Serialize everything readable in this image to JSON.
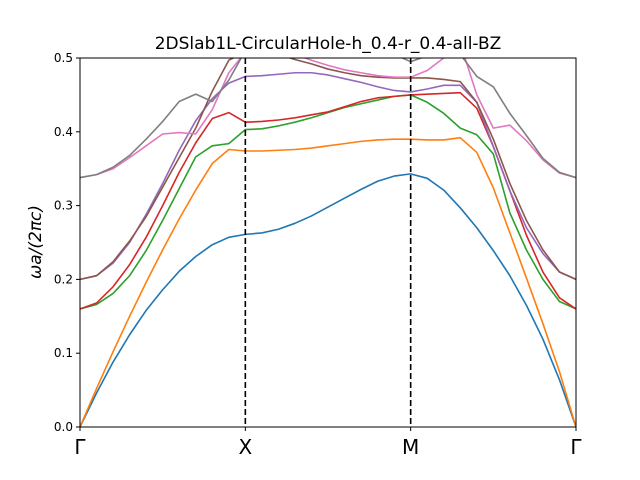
{
  "chart_data": {
    "type": "line",
    "title": "2DSlab1L-CircularHole-h_0.4-r_0.4-all-BZ",
    "ylabel": "ωa/(2πc)",
    "xlabel": "",
    "ylim": [
      0,
      0.5
    ],
    "xlim": [
      0,
      30
    ],
    "grid": false,
    "legend": "none",
    "x_ticks": [
      {
        "x": 0,
        "label": "Γ"
      },
      {
        "x": 10,
        "label": "X"
      },
      {
        "x": 20,
        "label": "M"
      },
      {
        "x": 30,
        "label": "Γ"
      }
    ],
    "y_ticks": [
      "0.0",
      "0.1",
      "0.2",
      "0.3",
      "0.4",
      "0.5"
    ],
    "y_tick_values": [
      0,
      0.1,
      0.2,
      0.3,
      0.4,
      0.5
    ],
    "vlines": [
      10,
      20
    ],
    "x": [
      0,
      1,
      2,
      3,
      4,
      5,
      6,
      7,
      8,
      9,
      10,
      11,
      12,
      13,
      14,
      15,
      16,
      17,
      18,
      19,
      20,
      21,
      22,
      23,
      24,
      25,
      26,
      27,
      28,
      29,
      30
    ],
    "series": [
      {
        "color": "#1f77b4",
        "values": [
          0.0,
          0.046,
          0.088,
          0.125,
          0.158,
          0.186,
          0.211,
          0.231,
          0.247,
          0.257,
          0.261,
          0.263,
          0.268,
          0.276,
          0.286,
          0.298,
          0.31,
          0.322,
          0.333,
          0.34,
          0.343,
          0.337,
          0.321,
          0.297,
          0.27,
          0.239,
          0.205,
          0.165,
          0.119,
          0.064,
          0.0
        ]
      },
      {
        "color": "#ff7f0e",
        "values": [
          0.0,
          0.052,
          0.102,
          0.15,
          0.196,
          0.24,
          0.282,
          0.321,
          0.357,
          0.376,
          0.374,
          0.374,
          0.375,
          0.376,
          0.378,
          0.381,
          0.384,
          0.387,
          0.389,
          0.39,
          0.39,
          0.389,
          0.389,
          0.392,
          0.372,
          0.324,
          0.263,
          0.202,
          0.14,
          0.075,
          0.0
        ]
      },
      {
        "color": "#2ca02c",
        "values": [
          0.16,
          0.166,
          0.181,
          0.205,
          0.239,
          0.28,
          0.323,
          0.366,
          0.381,
          0.384,
          0.403,
          0.404,
          0.408,
          0.413,
          0.419,
          0.426,
          0.433,
          0.438,
          0.443,
          0.448,
          0.45,
          0.44,
          0.425,
          0.405,
          0.396,
          0.37,
          0.29,
          0.24,
          0.2,
          0.17,
          0.16
        ]
      },
      {
        "color": "#d62728",
        "values": [
          0.16,
          0.168,
          0.19,
          0.22,
          0.257,
          0.3,
          0.345,
          0.385,
          0.418,
          0.426,
          0.413,
          0.414,
          0.416,
          0.419,
          0.423,
          0.427,
          0.434,
          0.441,
          0.446,
          0.448,
          0.45,
          0.451,
          0.452,
          0.453,
          0.432,
          0.38,
          0.32,
          0.26,
          0.21,
          0.175,
          0.16
        ]
      },
      {
        "color": "#9467bd",
        "values": [
          0.2,
          0.205,
          0.222,
          0.25,
          0.288,
          0.33,
          0.375,
          0.415,
          0.445,
          0.466,
          0.475,
          0.476,
          0.478,
          0.48,
          0.48,
          0.477,
          0.472,
          0.467,
          0.461,
          0.456,
          0.454,
          0.458,
          0.463,
          0.463,
          0.44,
          0.38,
          0.32,
          0.27,
          0.235,
          0.21,
          0.2
        ]
      },
      {
        "color": "#8c564b",
        "values": [
          0.2,
          0.205,
          0.224,
          0.252,
          0.285,
          0.325,
          0.365,
          0.405,
          0.455,
          0.497,
          0.508,
          0.51,
          0.505,
          0.498,
          0.492,
          0.485,
          0.48,
          0.476,
          0.474,
          0.473,
          0.473,
          0.473,
          0.471,
          0.468,
          0.44,
          0.39,
          0.33,
          0.28,
          0.24,
          0.21,
          0.2
        ]
      },
      {
        "color": "#e377c2",
        "values": [
          0.338,
          0.342,
          0.35,
          0.365,
          0.381,
          0.397,
          0.399,
          0.397,
          0.43,
          0.48,
          0.508,
          0.512,
          0.51,
          0.505,
          0.497,
          0.49,
          0.484,
          0.48,
          0.476,
          0.474,
          0.474,
          0.483,
          0.5,
          0.52,
          0.45,
          0.405,
          0.409,
          0.388,
          0.362,
          0.344,
          0.338
        ]
      },
      {
        "color": "#7f7f7f",
        "values": [
          0.338,
          0.342,
          0.352,
          0.368,
          0.39,
          0.414,
          0.441,
          0.451,
          0.441,
          0.47,
          0.51,
          0.52,
          0.525,
          0.525,
          0.525,
          0.525,
          0.525,
          0.52,
          0.515,
          0.505,
          0.495,
          0.503,
          0.51,
          0.505,
          0.475,
          0.461,
          0.425,
          0.395,
          0.364,
          0.345,
          0.338
        ]
      }
    ]
  }
}
